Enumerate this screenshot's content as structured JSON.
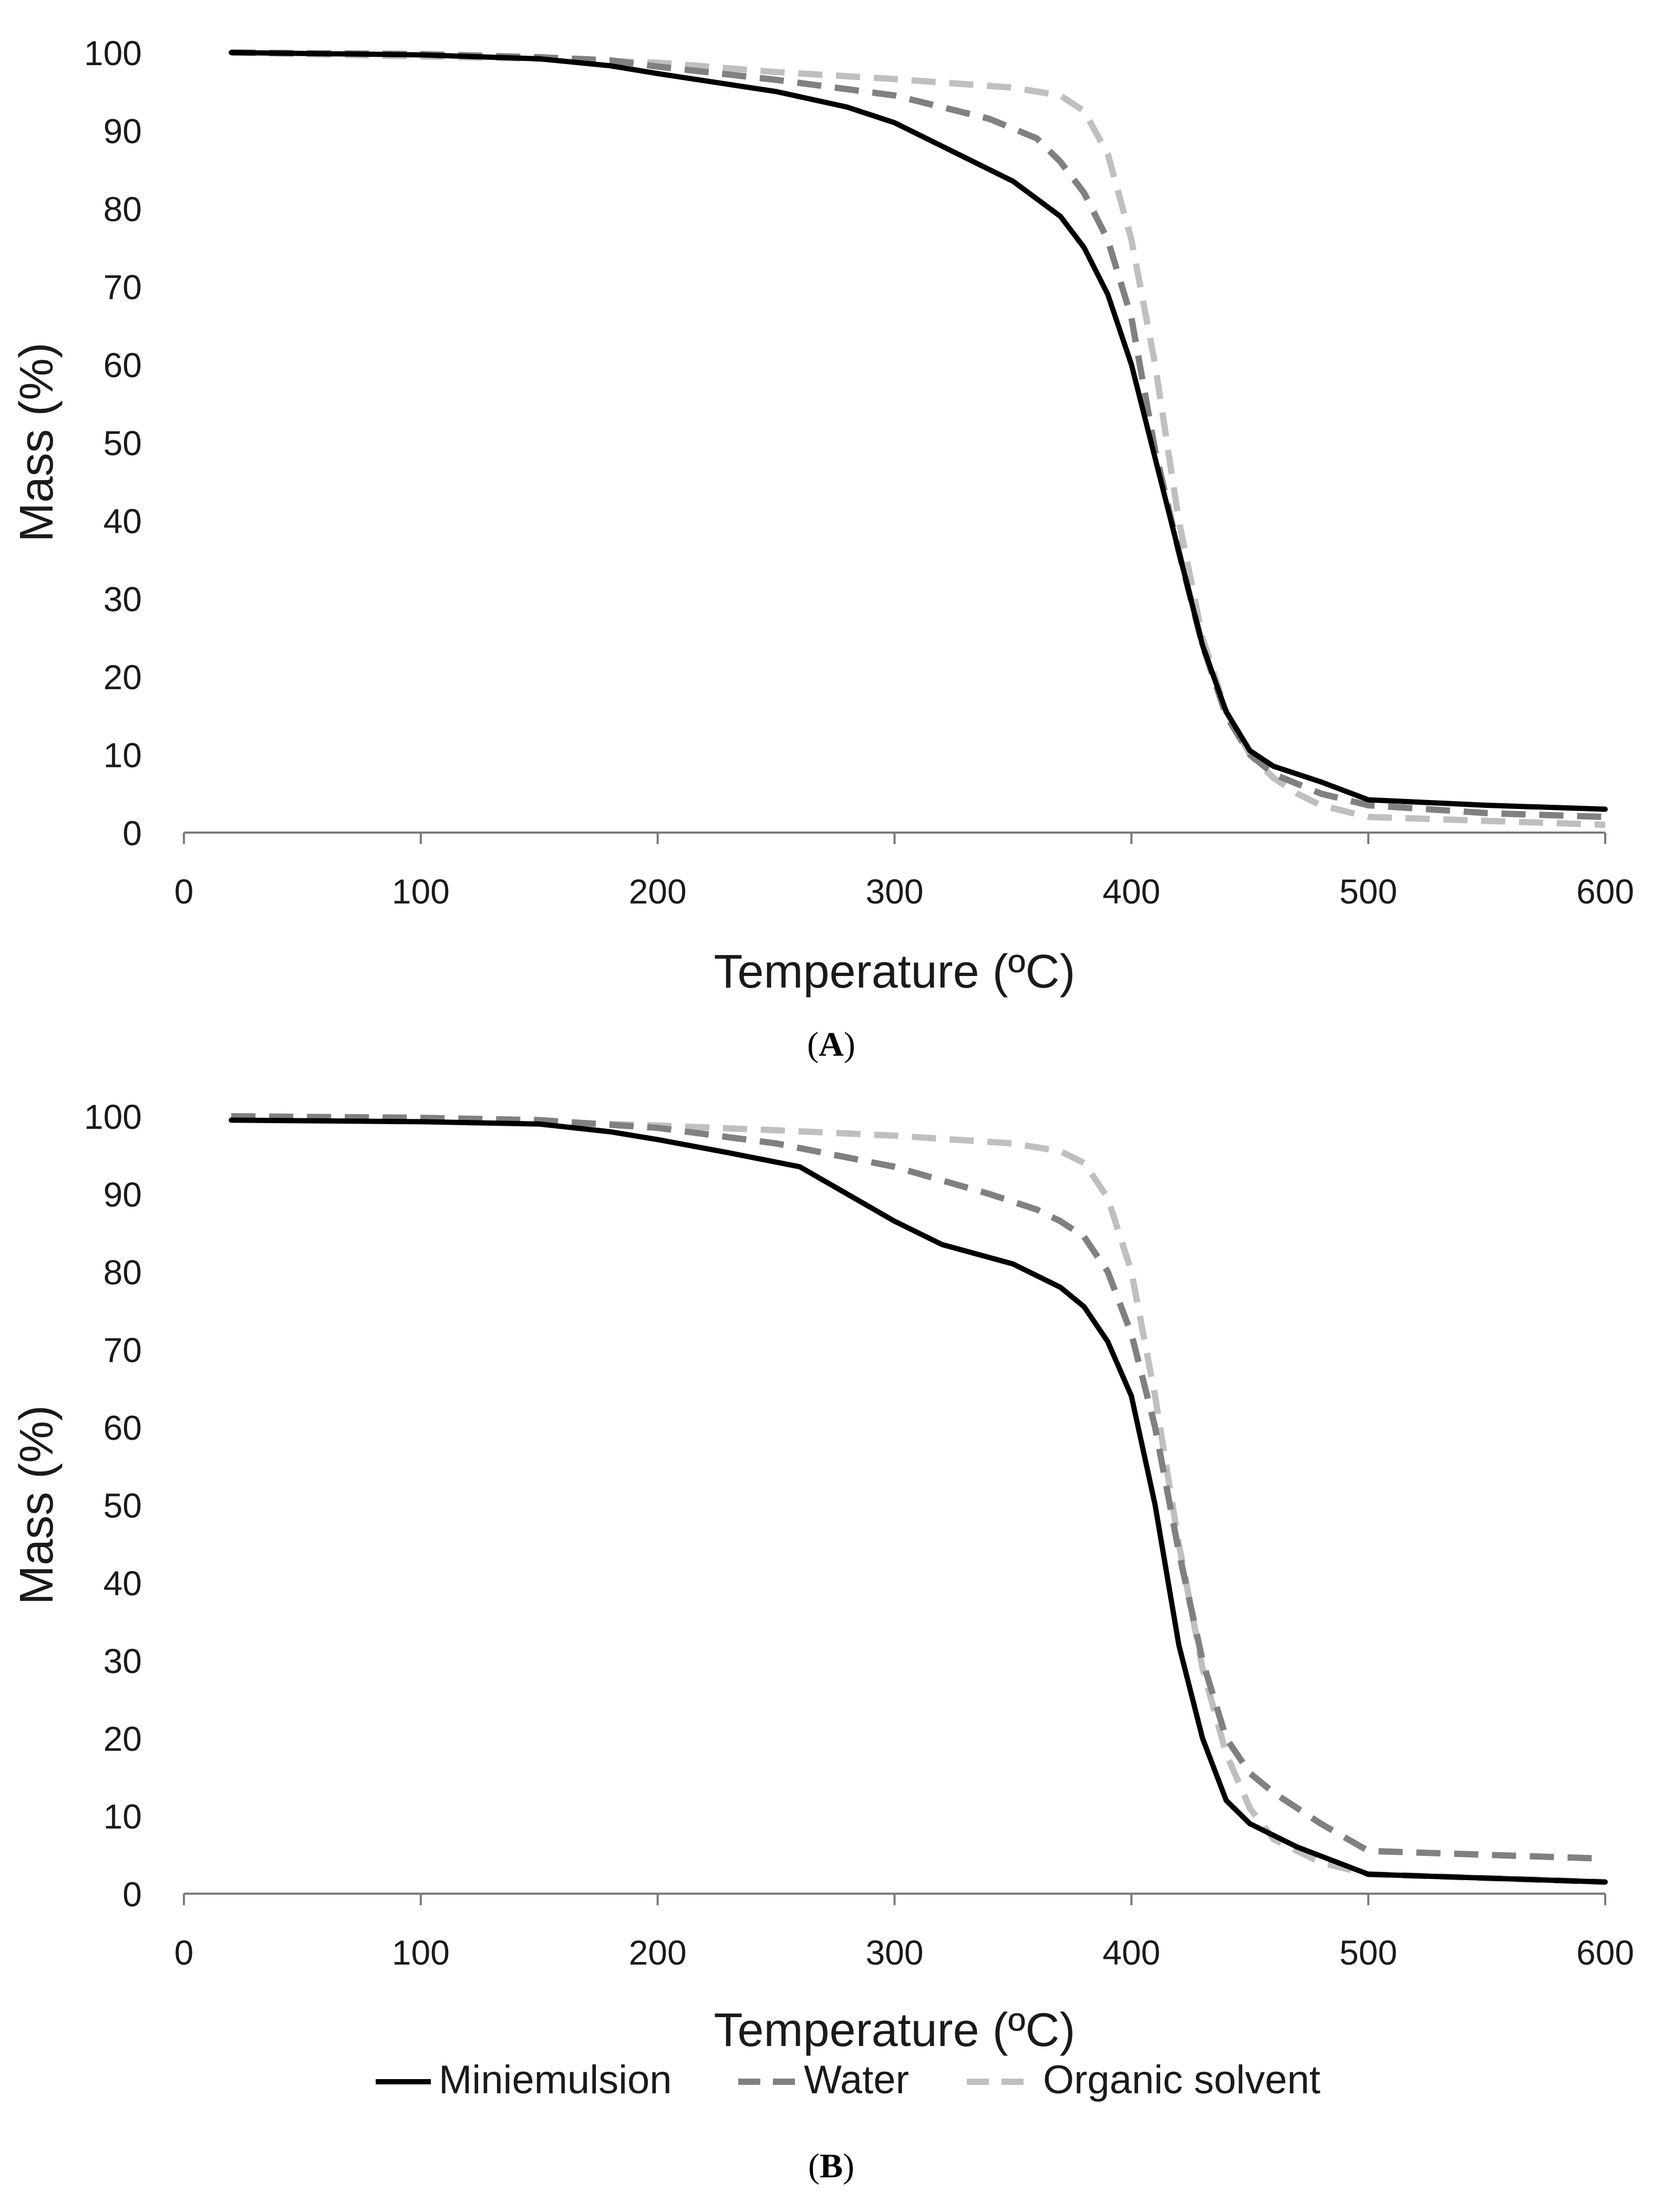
{
  "chart_data": [
    {
      "type": "line",
      "panel_label": "A",
      "xlabel": "Temperature (ºC)",
      "ylabel": "Mass (%)",
      "xlim": [
        0,
        600
      ],
      "ylim": [
        0,
        100
      ],
      "xticks": [
        0,
        100,
        200,
        300,
        400,
        500,
        600
      ],
      "yticks": [
        0,
        10,
        20,
        30,
        40,
        50,
        60,
        70,
        80,
        90,
        100
      ],
      "grid": false,
      "series": [
        {
          "name": "Miniemulsion",
          "color": "#000000",
          "style": "solid",
          "x": [
            20,
            100,
            150,
            180,
            200,
            250,
            280,
            300,
            320,
            350,
            370,
            380,
            390,
            400,
            410,
            420,
            430,
            440,
            450,
            460,
            480,
            500,
            550,
            600
          ],
          "y": [
            100,
            99.7,
            99.2,
            98.3,
            97.3,
            95,
            93,
            91,
            88,
            83.5,
            79,
            75,
            69,
            60,
            48,
            36,
            24,
            15.5,
            10.5,
            8.5,
            6.5,
            4.2,
            3.5,
            3.0
          ]
        },
        {
          "name": "Water",
          "color": "#808080",
          "style": "dashed",
          "x": [
            20,
            100,
            150,
            180,
            200,
            250,
            300,
            340,
            360,
            370,
            380,
            390,
            400,
            410,
            420,
            430,
            440,
            450,
            460,
            480,
            500,
            550,
            600
          ],
          "y": [
            100,
            99.8,
            99.4,
            99.0,
            98.2,
            96.5,
            94.5,
            91.5,
            89,
            86,
            82,
            76,
            66,
            49,
            36,
            24,
            15,
            10,
            7.5,
            5,
            3.5,
            2.5,
            2.0
          ]
        },
        {
          "name": "Organic solvent",
          "color": "#BFBFBF",
          "style": "dashed",
          "x": [
            20,
            100,
            150,
            200,
            250,
            300,
            350,
            370,
            380,
            390,
            400,
            410,
            420,
            430,
            440,
            450,
            460,
            470,
            480,
            500,
            550,
            600
          ],
          "y": [
            100,
            99.5,
            99.2,
            98.7,
            97.5,
            96.6,
            95.5,
            94.5,
            92.5,
            87,
            76,
            60,
            40,
            25,
            15.5,
            10,
            7,
            5,
            3.5,
            2,
            1.5,
            1.0
          ]
        }
      ]
    },
    {
      "type": "line",
      "panel_label": "B",
      "xlabel": "Temperature (ºC)",
      "ylabel": "Mass (%)",
      "xlim": [
        0,
        600
      ],
      "ylim": [
        0,
        100
      ],
      "xticks": [
        0,
        100,
        200,
        300,
        400,
        500,
        600
      ],
      "yticks": [
        0,
        10,
        20,
        30,
        40,
        50,
        60,
        70,
        80,
        90,
        100
      ],
      "grid": false,
      "series": [
        {
          "name": "Miniemulsion",
          "color": "#000000",
          "style": "solid",
          "x": [
            20,
            100,
            150,
            180,
            200,
            230,
            260,
            280,
            300,
            320,
            350,
            370,
            380,
            390,
            400,
            410,
            420,
            430,
            440,
            450,
            470,
            500,
            550,
            600
          ],
          "y": [
            99.5,
            99.3,
            99,
            98,
            97,
            95.3,
            93.5,
            90,
            86.5,
            83.5,
            81,
            78,
            75.5,
            71,
            64,
            50,
            32,
            20,
            12,
            9,
            6,
            2.5,
            2,
            1.5
          ]
        },
        {
          "name": "Water",
          "color": "#808080",
          "style": "dashed",
          "x": [
            20,
            100,
            150,
            200,
            250,
            300,
            340,
            360,
            370,
            380,
            390,
            400,
            410,
            420,
            430,
            440,
            450,
            460,
            480,
            500,
            550,
            600
          ],
          "y": [
            100,
            99.8,
            99.5,
            98.5,
            96.5,
            93.5,
            90,
            88,
            86.5,
            84.5,
            80,
            72,
            60,
            44,
            30,
            20,
            15.5,
            13,
            9,
            5.5,
            5,
            4.5
          ]
        },
        {
          "name": "Organic solvent",
          "color": "#BFBFBF",
          "style": "dashed",
          "x": [
            20,
            100,
            150,
            200,
            250,
            300,
            350,
            370,
            380,
            390,
            400,
            410,
            420,
            430,
            440,
            450,
            460,
            480,
            500,
            550,
            600
          ],
          "y": [
            100,
            99.6,
            99.3,
            98.8,
            98.2,
            97.5,
            96.5,
            95.5,
            94,
            89.5,
            80,
            64,
            45,
            29,
            18,
            11,
            7,
            4,
            2.5,
            2,
            1.5
          ]
        }
      ]
    }
  ],
  "legend": {
    "items": [
      {
        "label": "Miniemulsion",
        "color": "#000000",
        "style": "solid"
      },
      {
        "label": "Water",
        "color": "#808080",
        "style": "dashed"
      },
      {
        "label": "Organic solvent",
        "color": "#BFBFBF",
        "style": "dashed"
      }
    ]
  }
}
